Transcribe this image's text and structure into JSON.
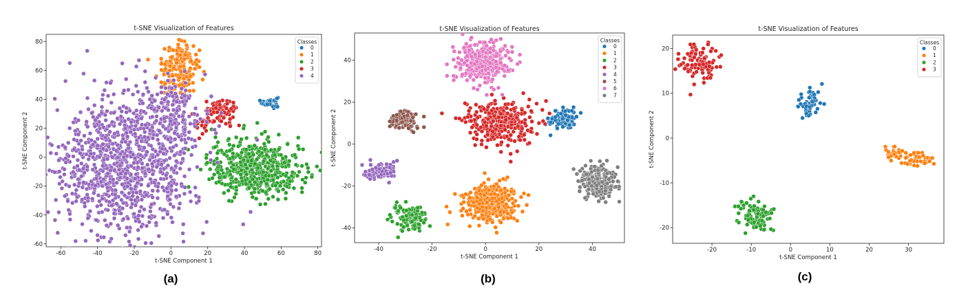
{
  "chart_data": [
    {
      "type": "scatter",
      "caption": "(a)",
      "title": "t-SNE Visualization of Features",
      "xlabel": "t-SNE Component 1",
      "ylabel": "t-SNE Component 2",
      "xlim": [
        -68,
        82
      ],
      "ylim": [
        -62,
        85
      ],
      "xticks": [
        -60,
        -40,
        -20,
        0,
        20,
        40,
        60,
        80
      ],
      "yticks": [
        -60,
        -40,
        -20,
        0,
        20,
        40,
        60,
        80
      ],
      "legend": {
        "title": "Classes",
        "position": "top-right",
        "entries": [
          "0",
          "1",
          "2",
          "3",
          "4"
        ]
      },
      "series": [
        {
          "name": "0",
          "color": "#1f77b4",
          "clusters": [
            {
              "cx": 54,
              "cy": 38,
              "sx": 2.2,
              "sy": 2.0,
              "n": 40
            }
          ]
        },
        {
          "name": "1",
          "color": "#ff7f0e",
          "clusters": [
            {
              "cx": 5,
              "cy": 65,
              "sx": 5.0,
              "sy": 7.0,
              "n": 150
            },
            {
              "cx": 3,
              "cy": 50,
              "sx": 6.0,
              "sy": 4.0,
              "n": 40
            }
          ]
        },
        {
          "name": "2",
          "color": "#2ca02c",
          "clusters": [
            {
              "cx": 47,
              "cy": -8,
              "sx": 13.0,
              "sy": 10.0,
              "n": 520
            }
          ]
        },
        {
          "name": "3",
          "color": "#d62728",
          "clusters": [
            {
              "cx": 27,
              "cy": 31,
              "sx": 4.5,
              "sy": 4.5,
              "n": 95
            },
            {
              "cx": 18,
              "cy": 22,
              "sx": 2.0,
              "sy": 3.0,
              "n": 15
            }
          ]
        },
        {
          "name": "4",
          "color": "#9467bd",
          "clusters": [
            {
              "cx": -25,
              "cy": -5,
              "sx": 19.0,
              "sy": 24.0,
              "n": 1050
            },
            {
              "cx": 0,
              "cy": 30,
              "sx": 8.0,
              "sy": 12.0,
              "n": 160
            }
          ]
        }
      ]
    },
    {
      "type": "scatter",
      "caption": "(b)",
      "title": "t-SNE Visualization of Features",
      "xlabel": "t-SNE Component 1",
      "ylabel": "t-SNE Component 2",
      "xlim": [
        -49,
        52
      ],
      "ylim": [
        -47,
        53
      ],
      "xticks": [
        -40,
        -20,
        0,
        20,
        40
      ],
      "yticks": [
        -40,
        -20,
        0,
        20,
        40
      ],
      "legend": {
        "title": "Classes",
        "position": "top-right",
        "entries": [
          "0",
          "1",
          "2",
          "3",
          "4",
          "5",
          "6",
          "7"
        ]
      },
      "series": [
        {
          "name": "0",
          "color": "#1f77b4",
          "clusters": [
            {
              "cx": 29,
              "cy": 12,
              "sx": 2.6,
              "sy": 2.6,
              "n": 90
            }
          ]
        },
        {
          "name": "1",
          "color": "#ff7f0e",
          "clusters": [
            {
              "cx": 2,
              "cy": -28,
              "sx": 5.0,
              "sy": 4.5,
              "n": 340
            }
          ]
        },
        {
          "name": "2",
          "color": "#2ca02c",
          "clusters": [
            {
              "cx": -29,
              "cy": -35,
              "sx": 3.2,
              "sy": 3.0,
              "n": 130
            }
          ]
        },
        {
          "name": "3",
          "color": "#d62728",
          "clusters": [
            {
              "cx": 5,
              "cy": 10,
              "sx": 6.5,
              "sy": 5.0,
              "n": 330
            }
          ]
        },
        {
          "name": "4",
          "color": "#9467bd",
          "clusters": [
            {
              "cx": -39,
              "cy": -13,
              "sx": 3.0,
              "sy": 2.0,
              "n": 90
            }
          ]
        },
        {
          "name": "5",
          "color": "#8c564b",
          "clusters": [
            {
              "cx": -30,
              "cy": 11,
              "sx": 3.0,
              "sy": 2.3,
              "n": 100
            }
          ]
        },
        {
          "name": "6",
          "color": "#e377c2",
          "clusters": [
            {
              "cx": -1,
              "cy": 39,
              "sx": 5.0,
              "sy": 5.0,
              "n": 330
            }
          ]
        },
        {
          "name": "7",
          "color": "#7f7f7f",
          "clusters": [
            {
              "cx": 42,
              "cy": -18,
              "sx": 3.5,
              "sy": 4.0,
              "n": 220
            }
          ]
        }
      ]
    },
    {
      "type": "scatter",
      "caption": "(c)",
      "title": "t-SNE Visualization of Features",
      "xlabel": "t-SNE Component 1",
      "ylabel": "t-SNE Component 2",
      "xlim": [
        -30,
        39
      ],
      "ylim": [
        -23.5,
        23
      ],
      "xticks": [
        -20,
        -10,
        0,
        10,
        20,
        30
      ],
      "yticks": [
        -20,
        -10,
        0,
        10,
        20
      ],
      "legend": {
        "title": "Classes",
        "position": "top-right",
        "entries": [
          "0",
          "1",
          "2",
          "3"
        ]
      },
      "series": [
        {
          "name": "0",
          "color": "#1f77b4",
          "clusters": [
            {
              "cx": 5,
              "cy": 8,
              "sx": 1.6,
              "sy": 1.6,
              "n": 60
            }
          ]
        },
        {
          "name": "1",
          "color": "#ff7f0e",
          "clusters": [
            {
              "cx": 26,
              "cy": -3.5,
              "sx": 1.5,
              "sy": 0.9,
              "n": 30
            },
            {
              "cx": 32.5,
              "cy": -5,
              "sx": 1.8,
              "sy": 1.0,
              "n": 40
            }
          ]
        },
        {
          "name": "2",
          "color": "#2ca02c",
          "clusters": [
            {
              "cx": -9,
              "cy": -17.5,
              "sx": 2.4,
              "sy": 1.7,
              "n": 100
            }
          ]
        },
        {
          "name": "3",
          "color": "#d62728",
          "clusters": [
            {
              "cx": -23,
              "cy": 17,
              "sx": 2.4,
              "sy": 2.2,
              "n": 100
            }
          ]
        }
      ]
    }
  ]
}
